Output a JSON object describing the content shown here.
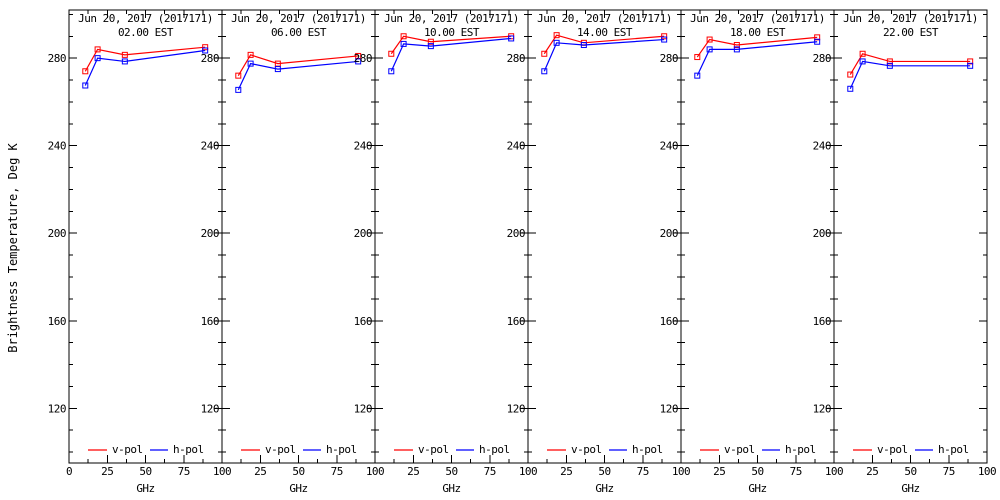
{
  "figure": {
    "background": "#ffffff",
    "axis_color": "#000000"
  },
  "chart_data": {
    "type": "line",
    "title": "Jun 20, 2017 (2017171)",
    "xlabel": "GHz",
    "ylabel": "Brightness Temperature, Deg K",
    "x": [
      10.65,
      18.7,
      36.5,
      89
    ],
    "xlim": [
      0,
      100
    ],
    "ylim": [
      95,
      302
    ],
    "x_major_ticks": [
      0,
      25,
      50,
      75,
      100
    ],
    "x_minor_ticks": [
      12.5,
      37.5,
      62.5,
      87.5
    ],
    "y_major_ticks": [
      280,
      240,
      200,
      160,
      120
    ],
    "y_minor_ticks": [
      300,
      290,
      270,
      260,
      250,
      230,
      220,
      210,
      190,
      180,
      170,
      150,
      140,
      130,
      110,
      100
    ],
    "grid": "off",
    "legend_position": "bottom-inside",
    "series_colors": {
      "v-pol": "#ff0000",
      "h-pol": "#0000ff"
    },
    "legend": [
      {
        "label": "v-pol",
        "color": "#ff0000"
      },
      {
        "label": "h-pol",
        "color": "#0000ff"
      }
    ],
    "panels": [
      {
        "title": "Jun 20, 2017 (2017171)",
        "subtitle": "02.00 EST",
        "series": [
          {
            "name": "v-pol",
            "values": [
              274,
              284,
              281.5,
              285
            ]
          },
          {
            "name": "h-pol",
            "values": [
              267.5,
              280,
              278.5,
              283.5
            ]
          }
        ]
      },
      {
        "title": "Jun 20, 2017 (2017171)",
        "subtitle": "06.00 EST",
        "series": [
          {
            "name": "v-pol",
            "values": [
              272,
              281.5,
              277.5,
              281
            ]
          },
          {
            "name": "h-pol",
            "values": [
              265.5,
              277.5,
              275,
              278.5
            ]
          }
        ]
      },
      {
        "title": "Jun 20, 2017 (2017171)",
        "subtitle": "10.00 EST",
        "series": [
          {
            "name": "v-pol",
            "values": [
              282,
              290,
              287.5,
              290
            ]
          },
          {
            "name": "h-pol",
            "values": [
              274,
              286.5,
              285.5,
              289
            ]
          }
        ]
      },
      {
        "title": "Jun 20, 2017 (2017171)",
        "subtitle": "14.00 EST",
        "series": [
          {
            "name": "v-pol",
            "values": [
              282,
              290.5,
              287,
              290
            ]
          },
          {
            "name": "h-pol",
            "values": [
              274,
              287,
              286,
              288.5
            ]
          }
        ]
      },
      {
        "title": "Jun 20, 2017 (2017171)",
        "subtitle": "18.00 EST",
        "series": [
          {
            "name": "v-pol",
            "values": [
              280.5,
              288.5,
              286,
              289.5
            ]
          },
          {
            "name": "h-pol",
            "values": [
              272,
              284,
              284,
              287.5
            ]
          }
        ]
      },
      {
        "title": "Jun 20, 2017 (2017171)",
        "subtitle": "22.00 EST",
        "series": [
          {
            "name": "v-pol",
            "values": [
              272.5,
              282,
              278.5,
              278.5
            ]
          },
          {
            "name": "h-pol",
            "values": [
              266,
              278.5,
              276.5,
              276.5
            ]
          }
        ]
      }
    ]
  }
}
